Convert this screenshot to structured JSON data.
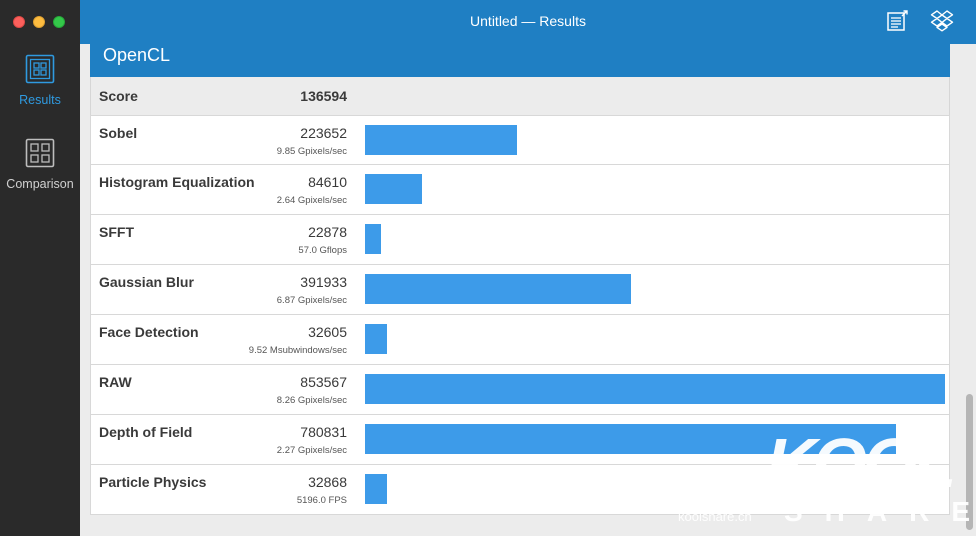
{
  "window": {
    "title": "Untitled — Results"
  },
  "sidebar": {
    "items": [
      {
        "label": "Results",
        "icon": "results-icon",
        "active": true
      },
      {
        "label": "Comparison",
        "icon": "comparison-icon",
        "active": false
      }
    ]
  },
  "toolbar": {
    "icons": [
      "export-icon",
      "dropbox-icon"
    ]
  },
  "section": {
    "title": "OpenCL"
  },
  "score": {
    "label": "Score",
    "value": "136594"
  },
  "tests": [
    {
      "name": "Sobel",
      "score": "223652",
      "sub": "9.85 Gpixels/sec",
      "value": 223652
    },
    {
      "name": "Histogram Equalization",
      "score": "84610",
      "sub": "2.64 Gpixels/sec",
      "value": 84610
    },
    {
      "name": "SFFT",
      "score": "22878",
      "sub": "57.0 Gflops",
      "value": 22878
    },
    {
      "name": "Gaussian Blur",
      "score": "391933",
      "sub": "6.87 Gpixels/sec",
      "value": 391933
    },
    {
      "name": "Face Detection",
      "score": "32605",
      "sub": "9.52 Msubwindows/sec",
      "value": 32605
    },
    {
      "name": "RAW",
      "score": "853567",
      "sub": "8.26 Gpixels/sec",
      "value": 853567
    },
    {
      "name": "Depth of Field",
      "score": "780831",
      "sub": "2.27 Gpixels/sec",
      "value": 780831
    },
    {
      "name": "Particle Physics",
      "score": "32868",
      "sub": "5196.0 FPS",
      "value": 32868
    }
  ],
  "bar_scale_max": 853567,
  "colors": {
    "accent": "#1f7fc3",
    "bar": "#3d9be9",
    "active_nav": "#2f9ae0"
  },
  "watermark": {
    "logo": "KOOL",
    "tagline": "SHARE",
    "site": "koolshare.cn"
  }
}
